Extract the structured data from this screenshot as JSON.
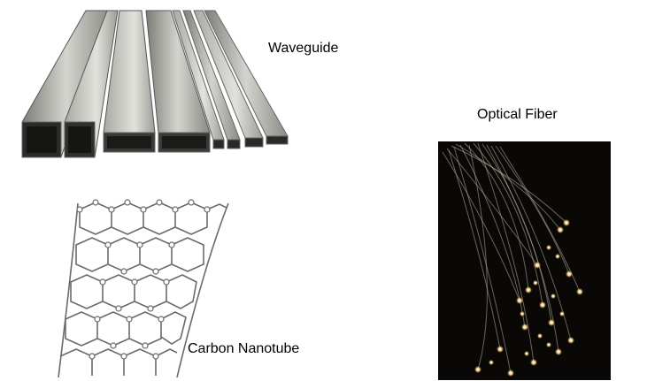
{
  "labels": {
    "waveguide": "Waveguide",
    "optical_fiber": "Optical Fiber",
    "carbon_nanotube": "Carbon Nanotube"
  },
  "colors": {
    "background": "#ffffff",
    "metal_light": "#c9c9c4",
    "metal_dark": "#3a3a36",
    "fiber_background": "#0a0806",
    "fiber_glow": "#ffe9b0",
    "nanotube_line": "#6a6a6a"
  }
}
